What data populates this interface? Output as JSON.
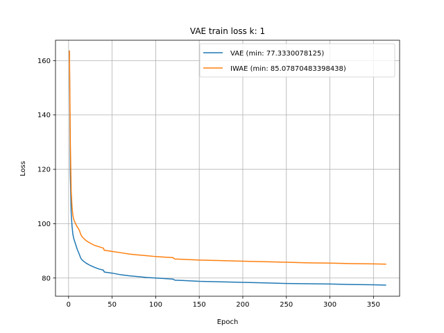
{
  "chart_data": {
    "type": "line",
    "title": "VAE train loss k: 1",
    "xlabel": "Epoch",
    "ylabel": "Loss",
    "xlim": [
      -15,
      380
    ],
    "ylim": [
      73.3,
      167.5
    ],
    "xticks": [
      0,
      50,
      100,
      150,
      200,
      250,
      300,
      350
    ],
    "yticks": [
      80,
      100,
      120,
      140,
      160
    ],
    "grid": true,
    "legend_position": "top-right",
    "series": [
      {
        "name": "VAE (min: 77.3330078125)",
        "color": "#1f77b4",
        "x": [
          1,
          2,
          3,
          4,
          5,
          6,
          8,
          10,
          12,
          14,
          16,
          20,
          25,
          30,
          35,
          40,
          41,
          50,
          60,
          70,
          80,
          90,
          100,
          110,
          120,
          121,
          122,
          130,
          150,
          175,
          200,
          225,
          250,
          275,
          300,
          325,
          350,
          364
        ],
        "y": [
          163.5,
          118.0,
          104.0,
          99.0,
          96.0,
          94.5,
          92.5,
          90.5,
          89.0,
          87.3,
          86.5,
          85.5,
          84.6,
          83.9,
          83.3,
          82.9,
          82.2,
          81.8,
          81.2,
          80.8,
          80.5,
          80.2,
          80.0,
          79.8,
          79.6,
          79.4,
          79.2,
          79.1,
          78.8,
          78.6,
          78.4,
          78.2,
          78.0,
          77.9,
          77.8,
          77.6,
          77.5,
          77.4
        ]
      },
      {
        "name": "IWAE (min: 85.07870483398438)",
        "color": "#ff7f0e",
        "x": [
          1,
          2,
          3,
          4,
          5,
          6,
          8,
          10,
          12,
          13,
          14,
          16,
          20,
          25,
          30,
          35,
          40,
          41,
          50,
          60,
          70,
          80,
          90,
          100,
          110,
          120,
          121,
          122,
          130,
          150,
          175,
          200,
          225,
          250,
          275,
          300,
          325,
          350,
          364
        ],
        "y": [
          163.5,
          130.0,
          112.0,
          106.0,
          103.0,
          101.5,
          100.0,
          98.8,
          97.8,
          97.0,
          96.0,
          95.0,
          93.8,
          92.8,
          92.0,
          91.5,
          91.0,
          90.2,
          89.8,
          89.3,
          88.8,
          88.5,
          88.2,
          87.9,
          87.7,
          87.5,
          87.2,
          87.0,
          86.9,
          86.6,
          86.4,
          86.2,
          86.0,
          85.8,
          85.6,
          85.5,
          85.3,
          85.2,
          85.1
        ]
      }
    ]
  }
}
